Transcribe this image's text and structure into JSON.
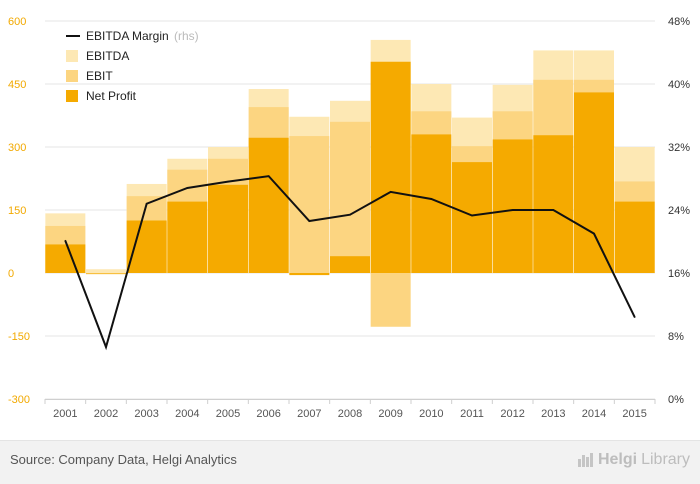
{
  "chart_data": {
    "type": "bar",
    "categories": [
      "2001",
      "2002",
      "2003",
      "2004",
      "2005",
      "2006",
      "2007",
      "2008",
      "2009",
      "2010",
      "2011",
      "2012",
      "2013",
      "2014",
      "2015"
    ],
    "series": [
      {
        "name": "EBITDA",
        "kind": "bar",
        "axis": "left",
        "color": "#fde8b4",
        "values": [
          142,
          9,
          212,
          272,
          300,
          438,
          372,
          410,
          555,
          450,
          370,
          448,
          530,
          530,
          300
        ]
      },
      {
        "name": "EBIT",
        "kind": "bar",
        "axis": "left",
        "color": "#fcd581",
        "values": [
          112,
          -3,
          183,
          246,
          272,
          395,
          326,
          360,
          -128,
          385,
          302,
          385,
          460,
          460,
          218
        ]
      },
      {
        "name": "Net Profit",
        "kind": "bar",
        "axis": "left",
        "color": "#f5aa00",
        "values": [
          68,
          0,
          125,
          170,
          210,
          322,
          -5,
          40,
          503,
          330,
          264,
          318,
          328,
          430,
          170
        ]
      },
      {
        "name": "EBITDA Margin",
        "kind": "line",
        "axis": "right",
        "color": "#111111",
        "unit": "%",
        "values": [
          20.1,
          6.6,
          24.8,
          26.8,
          27.6,
          28.3,
          22.6,
          23.4,
          26.3,
          25.4,
          23.3,
          24.0,
          24.0,
          21.0,
          10.4
        ]
      }
    ],
    "yleft": {
      "ylim": [
        -300,
        600
      ],
      "ticks": [
        "-300",
        "-150",
        "0",
        "150",
        "300",
        "450",
        "600"
      ]
    },
    "yright": {
      "ylim": [
        0,
        48
      ],
      "ticks": [
        "0%",
        "8%",
        "16%",
        "24%",
        "32%",
        "40%",
        "48%"
      ]
    },
    "grid": true,
    "legend_position": "top-left",
    "legend": {
      "margin_label": "EBITDA Margin",
      "margin_suffix": "(rhs)",
      "ebitda_label": "EBITDA",
      "ebit_label": "EBIT",
      "profit_label": "Net Profit"
    },
    "title": "",
    "xlabel": "",
    "ylabel": ""
  },
  "footer": {
    "source": "Source: Company Data, Helgi Analytics",
    "brand_bold": "Helgi",
    "brand_rest": "Library"
  }
}
